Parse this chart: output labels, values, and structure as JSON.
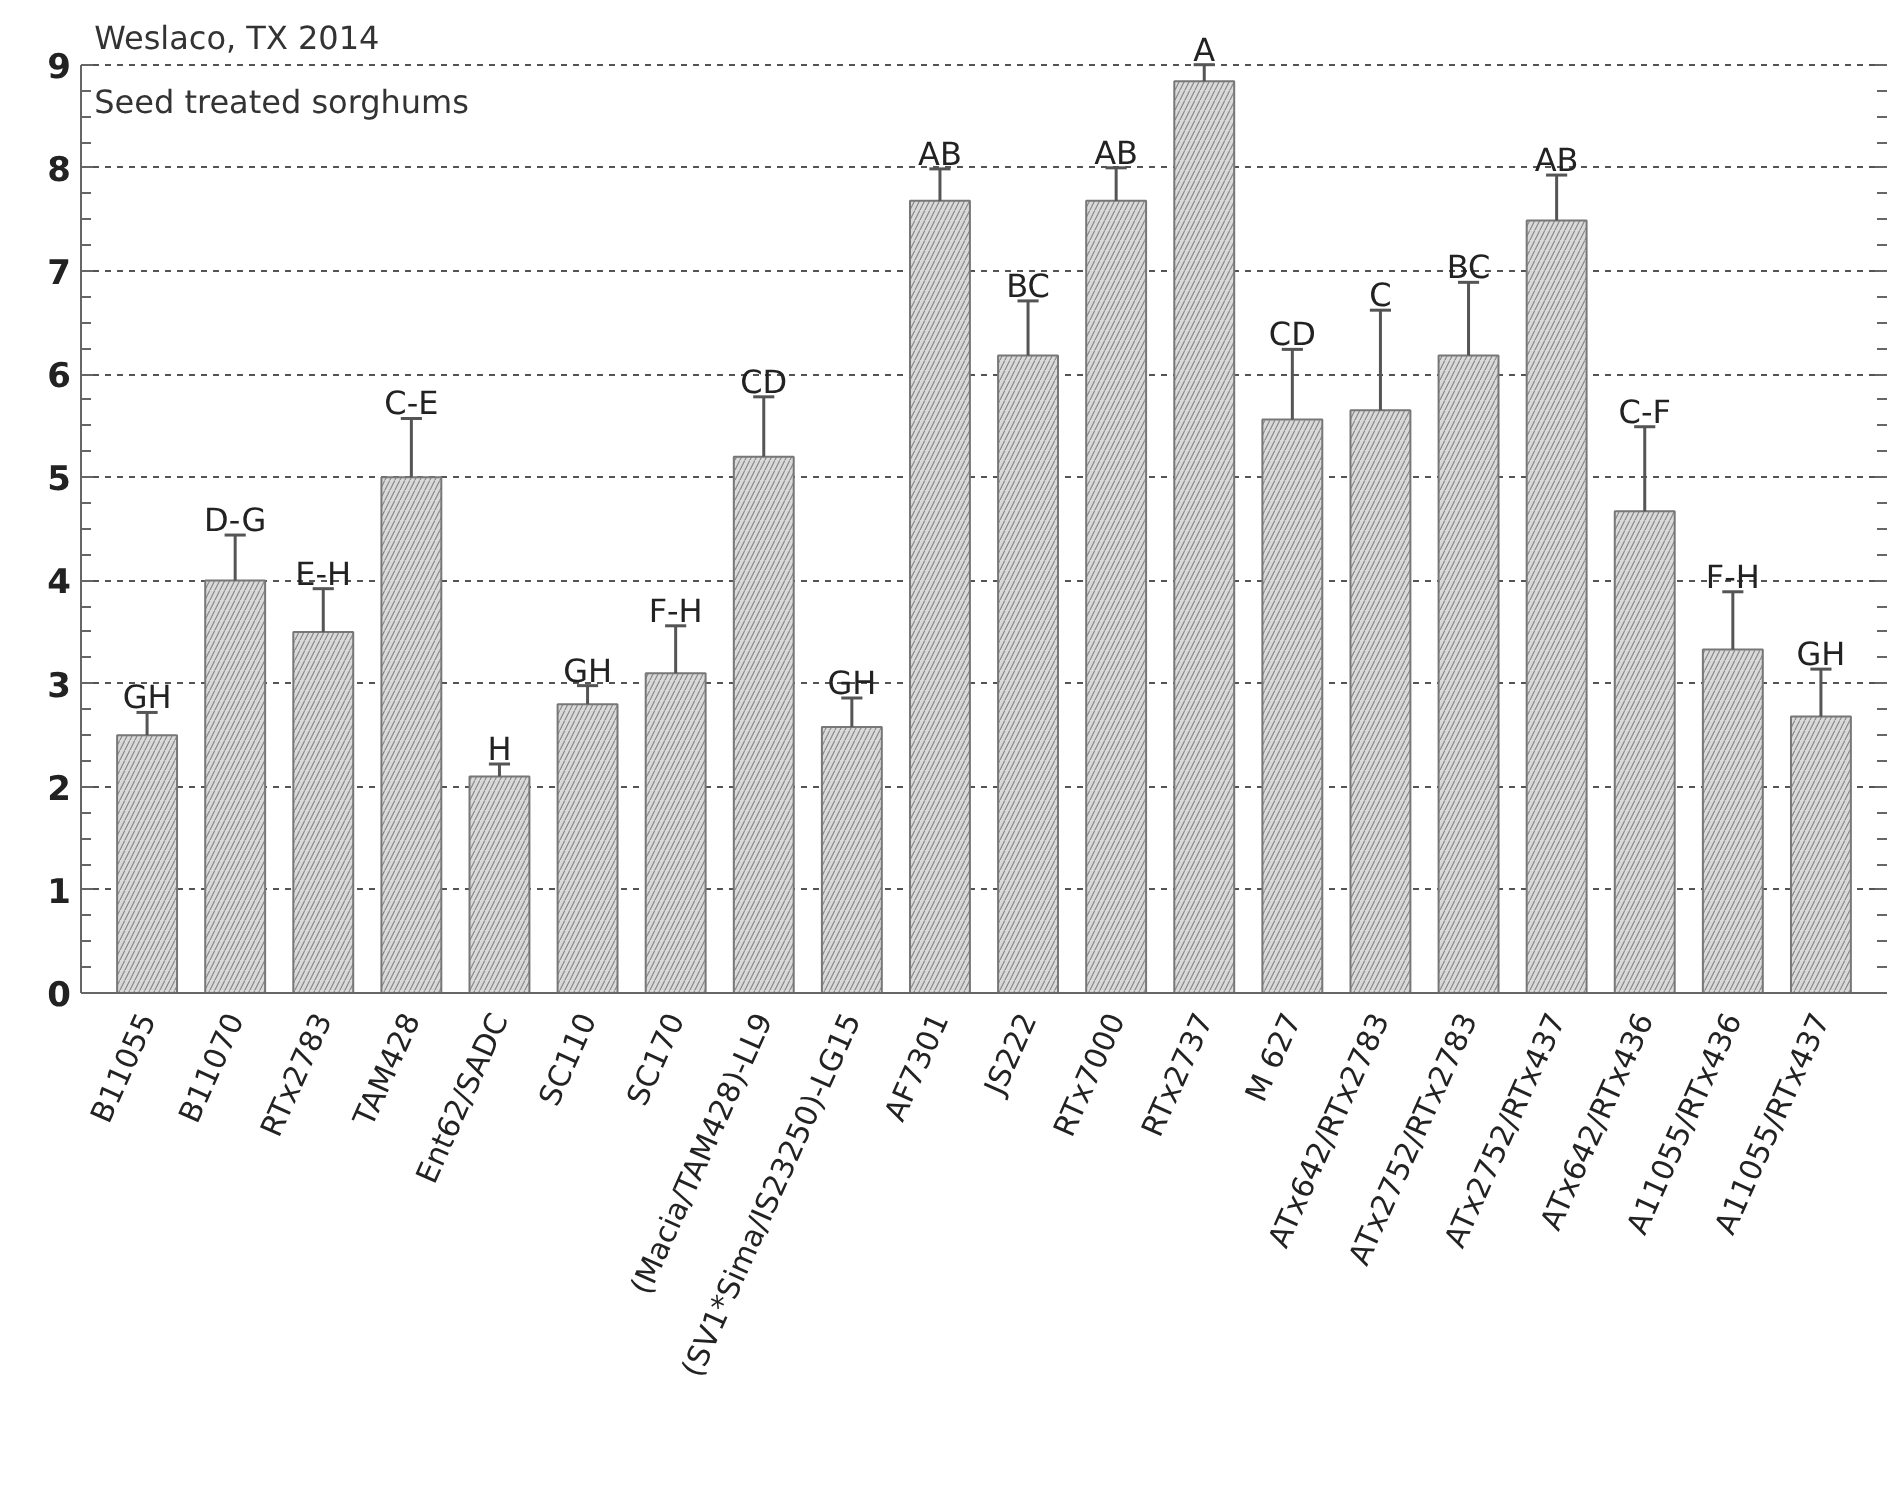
{
  "chart_data": {
    "type": "bar",
    "title": "Weslaco, TX 2014",
    "subtitle": "Seed treated sorghums",
    "categories": [
      "B11055",
      "B11070",
      "RTx2783",
      "TAM428",
      "Ent62/SADC",
      "SC110",
      "SC170",
      "(Macia/TAM428)-LL9",
      "(SV1*Sima/IS23250)-LG15",
      "AF7301",
      "JS222",
      "RTx7000",
      "RTx2737",
      "M 627",
      "ATx642/RTx2783",
      "ATx2752/RTx2783",
      "ATx2752/RTx437",
      "ATx642/RTx436",
      "A11055/RTx436",
      "A11055/RTx437"
    ],
    "values": [
      2.5,
      4.0,
      3.5,
      5.0,
      2.1,
      2.8,
      3.1,
      5.2,
      2.58,
      7.68,
      6.18,
      7.68,
      8.84,
      5.56,
      5.65,
      6.18,
      7.49,
      4.67,
      3.33,
      2.68
    ],
    "errors": [
      0.22,
      0.44,
      0.42,
      0.57,
      0.12,
      0.18,
      0.46,
      0.58,
      0.28,
      0.31,
      0.53,
      0.32,
      0.16,
      0.68,
      0.97,
      0.71,
      0.44,
      0.82,
      0.56,
      0.46
    ],
    "color": "#d9d9d9",
    "ylim": [
      0,
      9
    ],
    "yticks": [
      0,
      1,
      2,
      3,
      4,
      5,
      6,
      7,
      8,
      9
    ],
    "grid": "y",
    "annotations": [
      {
        "text": "GH",
        "x": "B11055",
        "y": 2.72
      },
      {
        "text": "D-G",
        "x": "B11070",
        "y": 4.44
      },
      {
        "text": "E-H",
        "x": "RTx2783",
        "y": 3.92
      },
      {
        "text": "C-E",
        "x": "TAM428",
        "y": 5.57
      },
      {
        "text": "H",
        "x": "Ent62/SADC",
        "y": 2.22
      },
      {
        "text": "GH",
        "x": "SC110",
        "y": 2.98
      },
      {
        "text": "F-H",
        "x": "SC170",
        "y": 3.56
      },
      {
        "text": "CD",
        "x": "(Macia/TAM428)-LL9",
        "y": 5.78
      },
      {
        "text": "GH",
        "x": "(SV1*Sima/IS23250)-LG15",
        "y": 2.86
      },
      {
        "text": "AB",
        "x": "AF7301",
        "y": 7.99
      },
      {
        "text": "BC",
        "x": "JS222",
        "y": 6.71
      },
      {
        "text": "AB",
        "x": "RTx7000",
        "y": 8.0
      },
      {
        "text": "A",
        "x": "RTx2737",
        "y": 9.0
      },
      {
        "text": "CD",
        "x": "M 627",
        "y": 6.24
      },
      {
        "text": "C",
        "x": "ATx642/RTx2783",
        "y": 6.62
      },
      {
        "text": "BC",
        "x": "ATx2752/RTx2783",
        "y": 6.89
      },
      {
        "text": "AB",
        "x": "ATx2752/RTx437",
        "y": 7.93
      },
      {
        "text": "C-F",
        "x": "ATx642/RTx436",
        "y": 5.49
      },
      {
        "text": "F-H",
        "x": "A11055/RTx436",
        "y": 3.89
      },
      {
        "text": "GH",
        "x": "A11055/RTx437",
        "y": 3.14
      }
    ]
  }
}
